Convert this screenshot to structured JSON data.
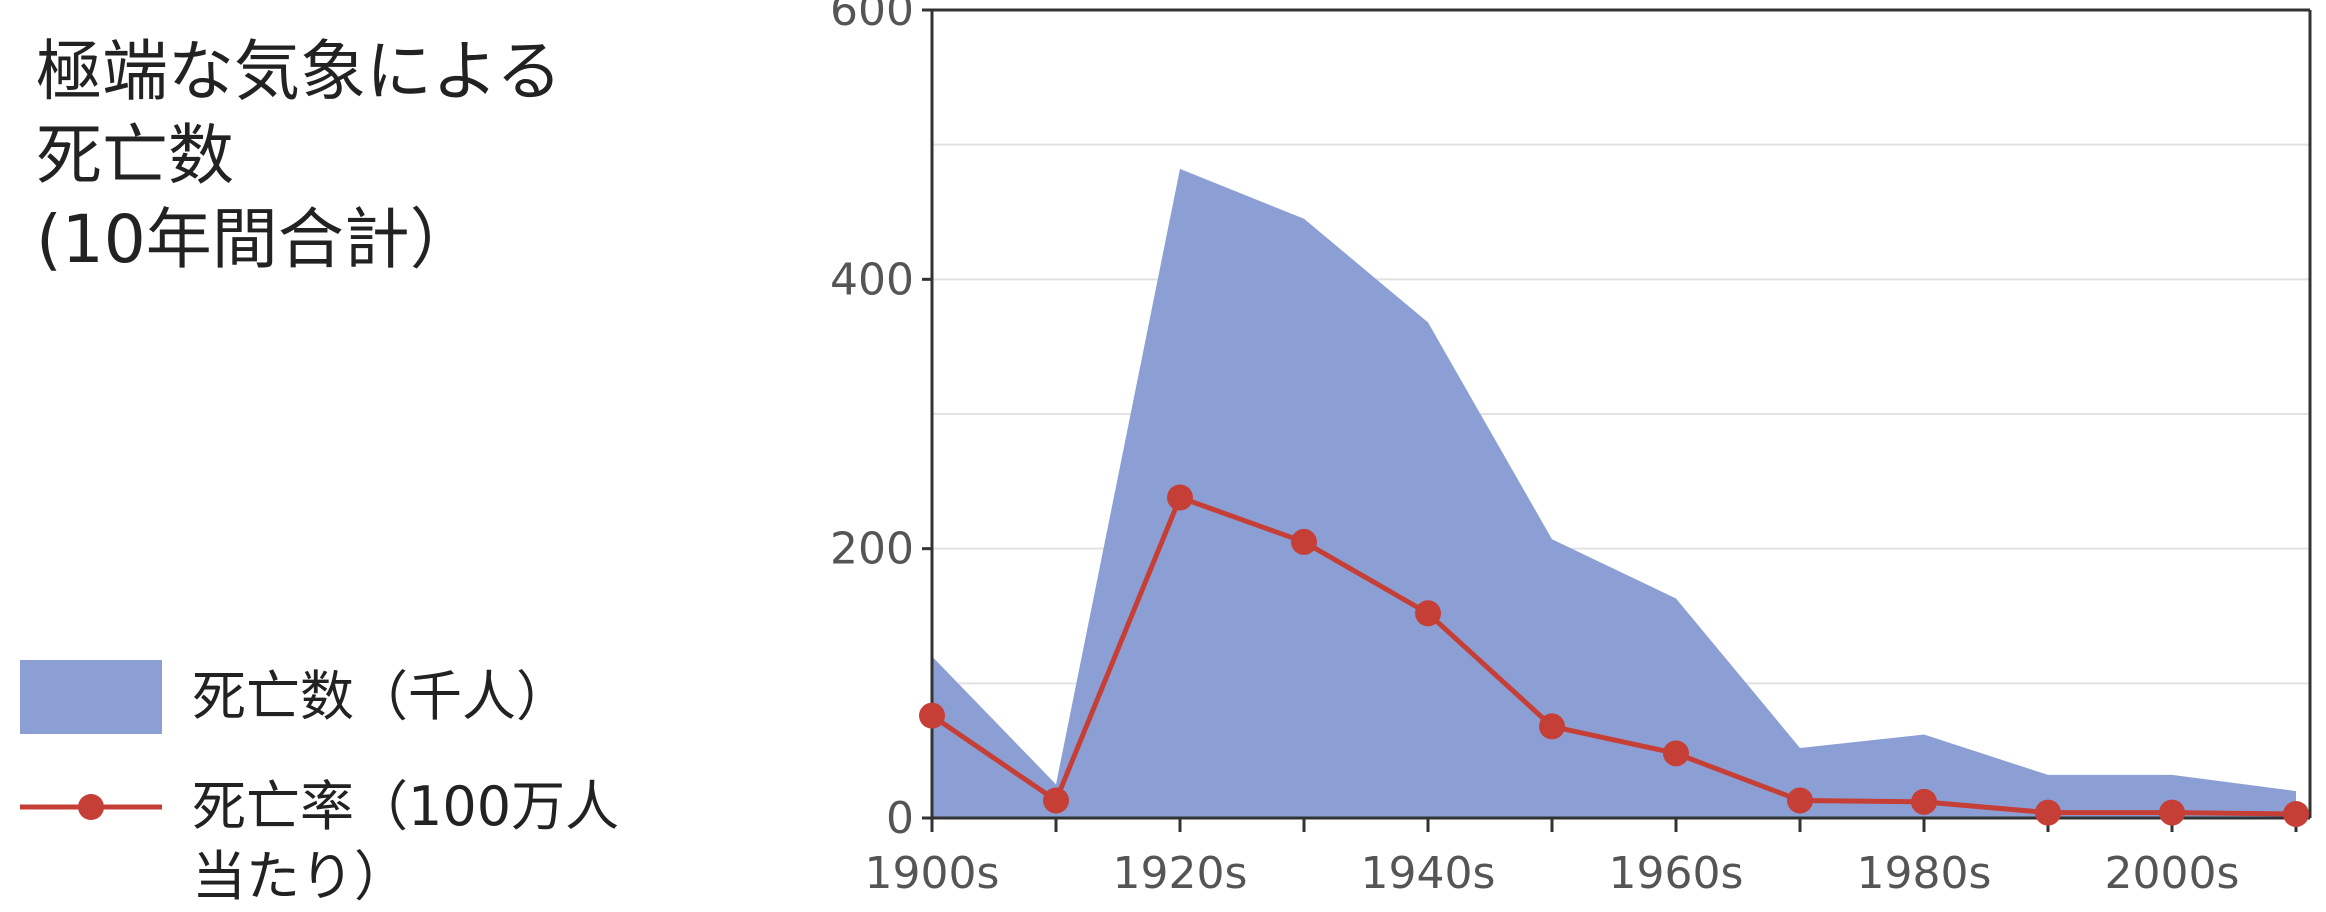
{
  "title": {
    "line1": "極端な気象による",
    "line2": "死亡数",
    "line3": "(10年間合計）"
  },
  "colors": {
    "area": "#8c9fd5",
    "line": "#c63f36",
    "grid": "#e2e2e2",
    "axis": "#333333"
  },
  "chart_data": {
    "type": "area",
    "title": "極端な気象による死亡数 (10年間合計）",
    "xlabel": "",
    "ylabel": "",
    "categories": [
      "1900s",
      "1910s",
      "1920s",
      "1930s",
      "1940s",
      "1950s",
      "1960s",
      "1970s",
      "1980s",
      "1990s",
      "2000s",
      "2010s"
    ],
    "x_tick_labels": [
      "1900s",
      "1920s",
      "1940s",
      "1960s",
      "1980s",
      "2000s"
    ],
    "y_tick_labels": [
      "0",
      "200",
      "400",
      "600"
    ],
    "ylim": [
      0,
      600
    ],
    "grid": true,
    "legend_position": "left",
    "series": [
      {
        "name": "死亡数（千人）",
        "type": "area",
        "values": [
          120,
          25,
          482,
          445,
          368,
          207,
          163,
          52,
          62,
          32,
          32,
          20
        ]
      },
      {
        "name": "死亡率（100万人当たり）",
        "type": "line",
        "values": [
          76,
          13,
          238,
          205,
          152,
          68,
          48,
          13,
          12,
          4,
          4,
          3
        ]
      }
    ]
  },
  "legend": {
    "area_label": "死亡数（千人）",
    "line_label_1": "死亡率（100万人",
    "line_label_2": "当たり）"
  }
}
